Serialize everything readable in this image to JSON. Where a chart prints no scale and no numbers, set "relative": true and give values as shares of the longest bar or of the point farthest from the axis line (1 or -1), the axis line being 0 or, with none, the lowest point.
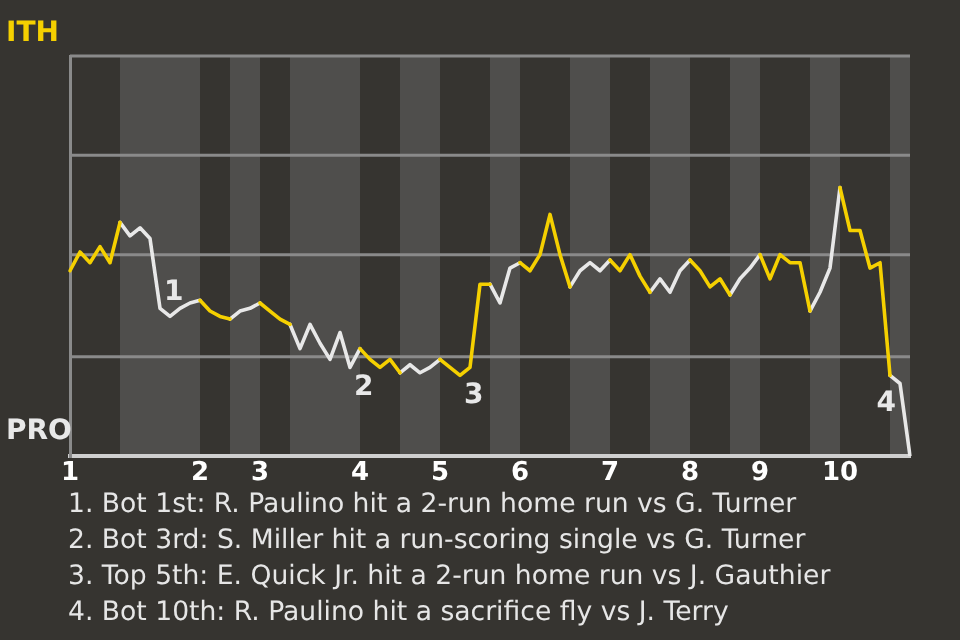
{
  "chart_data": {
    "type": "line",
    "categories": [
      "1",
      null,
      null,
      null,
      null,
      null,
      null,
      null,
      null,
      null,
      null,
      null,
      null,
      "2",
      null,
      null,
      null,
      null,
      null,
      "3",
      null,
      null,
      null,
      null,
      null,
      null,
      null,
      null,
      null,
      "4",
      null,
      null,
      null,
      null,
      null,
      null,
      null,
      "5",
      null,
      null,
      null,
      null,
      null,
      null,
      null,
      "6",
      null,
      null,
      null,
      null,
      null,
      null,
      null,
      null,
      "7",
      null,
      null,
      null,
      null,
      null,
      null,
      null,
      "8",
      null,
      null,
      null,
      null,
      null,
      null,
      "9",
      null,
      null,
      null,
      null,
      null,
      null,
      null,
      "10",
      null,
      null,
      null,
      null,
      null,
      null,
      null
    ],
    "relative": true,
    "series": [
      {
        "name": "ITH",
        "color": "#f5d000",
        "values": [
          0.69,
          0.76,
          0.72,
          0.78,
          0.72,
          0.87,
          null,
          null,
          null,
          null,
          null,
          null,
          null,
          0.58,
          0.54,
          0.52,
          0.51,
          null,
          null,
          0.57,
          0.54,
          0.51,
          0.49,
          null,
          null,
          null,
          null,
          null,
          null,
          0.4,
          0.36,
          0.33,
          0.36,
          0.31,
          null,
          null,
          null,
          0.36,
          0.33,
          0.3,
          0.33,
          0.64,
          0.64,
          null,
          null,
          0.72,
          0.69,
          0.75,
          0.9,
          0.75,
          0.63,
          null,
          null,
          null,
          0.73,
          0.69,
          0.75,
          0.67,
          0.61,
          null,
          null,
          null,
          0.73,
          0.69,
          0.63,
          0.66,
          0.6,
          null,
          null,
          0.75,
          0.66,
          0.75,
          0.72,
          0.72,
          0.54,
          null,
          null,
          1,
          0.84,
          0.84,
          0.7,
          0.72,
          0.3,
          null,
          null
        ]
      },
      {
        "name": "PRO",
        "color": "#e8e8e8",
        "values": [
          null,
          null,
          null,
          null,
          null,
          0.87,
          0.82,
          0.85,
          0.81,
          0.55,
          0.52,
          0.55,
          0.57,
          0.58,
          null,
          null,
          0.51,
          0.54,
          0.55,
          0.57,
          null,
          null,
          0.49,
          0.4,
          0.49,
          0.42,
          0.36,
          0.46,
          0.33,
          0.4,
          null,
          null,
          null,
          0.31,
          0.34,
          0.31,
          0.33,
          0.36,
          null,
          null,
          null,
          null,
          0.64,
          0.57,
          0.7,
          0.72,
          null,
          null,
          null,
          null,
          0.63,
          0.69,
          0.72,
          0.69,
          0.73,
          null,
          null,
          null,
          0.61,
          0.66,
          0.61,
          0.69,
          0.73,
          null,
          null,
          null,
          0.6,
          0.66,
          0.7,
          0.75,
          null,
          null,
          null,
          null,
          0.54,
          0.61,
          0.7,
          1,
          null,
          null,
          null,
          null,
          0.3,
          0.27,
          0
        ]
      }
    ],
    "ref_lines": [
      {
        "axis": "y",
        "value": 0.37,
        "color": "#8a8a8a"
      },
      {
        "axis": "y",
        "value": 0.75,
        "color": "#8a8a8a"
      },
      {
        "axis": "y",
        "value": 1.12,
        "color": "#8a8a8a"
      },
      {
        "axis": "y",
        "value": 1.49,
        "color": "#8a8a8a"
      }
    ],
    "annotations": [
      {
        "text": "1",
        "y": 0.55
      },
      {
        "text": "2",
        "y": 0.33
      },
      {
        "text": "3",
        "y": 0.3
      },
      {
        "text": "4",
        "y": 0.27
      },
      "1. Bot 1st: R. Paulino hit a 2-run home run vs G. Turner",
      "2. Bot 3rd: S. Miller hit a run-scoring single vs G. Turner",
      "3. Top 5th: E. Quick Jr. hit a 2-run home run vs J. Gauthier",
      "4. Bot 10th: R. Paulino hit a sacrifice fly vs J. Terry"
    ],
    "legend": false,
    "marker": "none",
    "line_style": "solid"
  }
}
